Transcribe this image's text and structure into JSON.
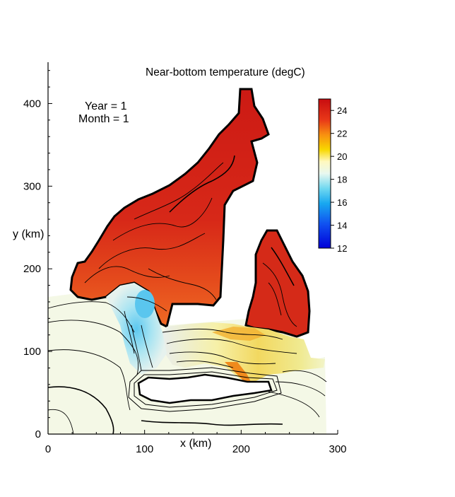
{
  "title": "Near-bottom temperature (degC)",
  "annotation": {
    "year": "Year = 1",
    "month": "Month = 1"
  },
  "xlabel": "x (km)",
  "ylabel": "y (km)",
  "x_ticks": [
    "0",
    "100",
    "200",
    "300"
  ],
  "y_ticks": [
    "0",
    "100",
    "200",
    "300",
    "400"
  ],
  "colorbar": {
    "ticks": [
      "24",
      "22",
      "20",
      "18",
      "16",
      "14",
      "12"
    ],
    "min": 12,
    "max": 25
  },
  "colors": {
    "warm": "#d42418",
    "hot": "#c81712",
    "mid": "#ef5a20",
    "yellow": "#f2e070",
    "pale": "#f4f8e4",
    "cool": "#a8e2f0",
    "cold": "#60c8ee"
  },
  "chart_data": {
    "type": "heatmap",
    "xlabel": "x (km)",
    "ylabel": "y (km)",
    "xlim": [
      0,
      300
    ],
    "ylim": [
      0,
      450
    ],
    "color_range": [
      12,
      25
    ],
    "regions": [
      {
        "area": "northern bay / channel",
        "temperature": 24.5
      },
      {
        "area": "central basin",
        "temperature": 23
      },
      {
        "area": "eastern bay",
        "temperature": 24
      },
      {
        "area": "southern channel",
        "temperature": 20.5
      },
      {
        "area": "cold pool near x=100",
        "temperature": 17
      },
      {
        "area": "shelf / open sea",
        "temperature": 19.5
      }
    ]
  }
}
